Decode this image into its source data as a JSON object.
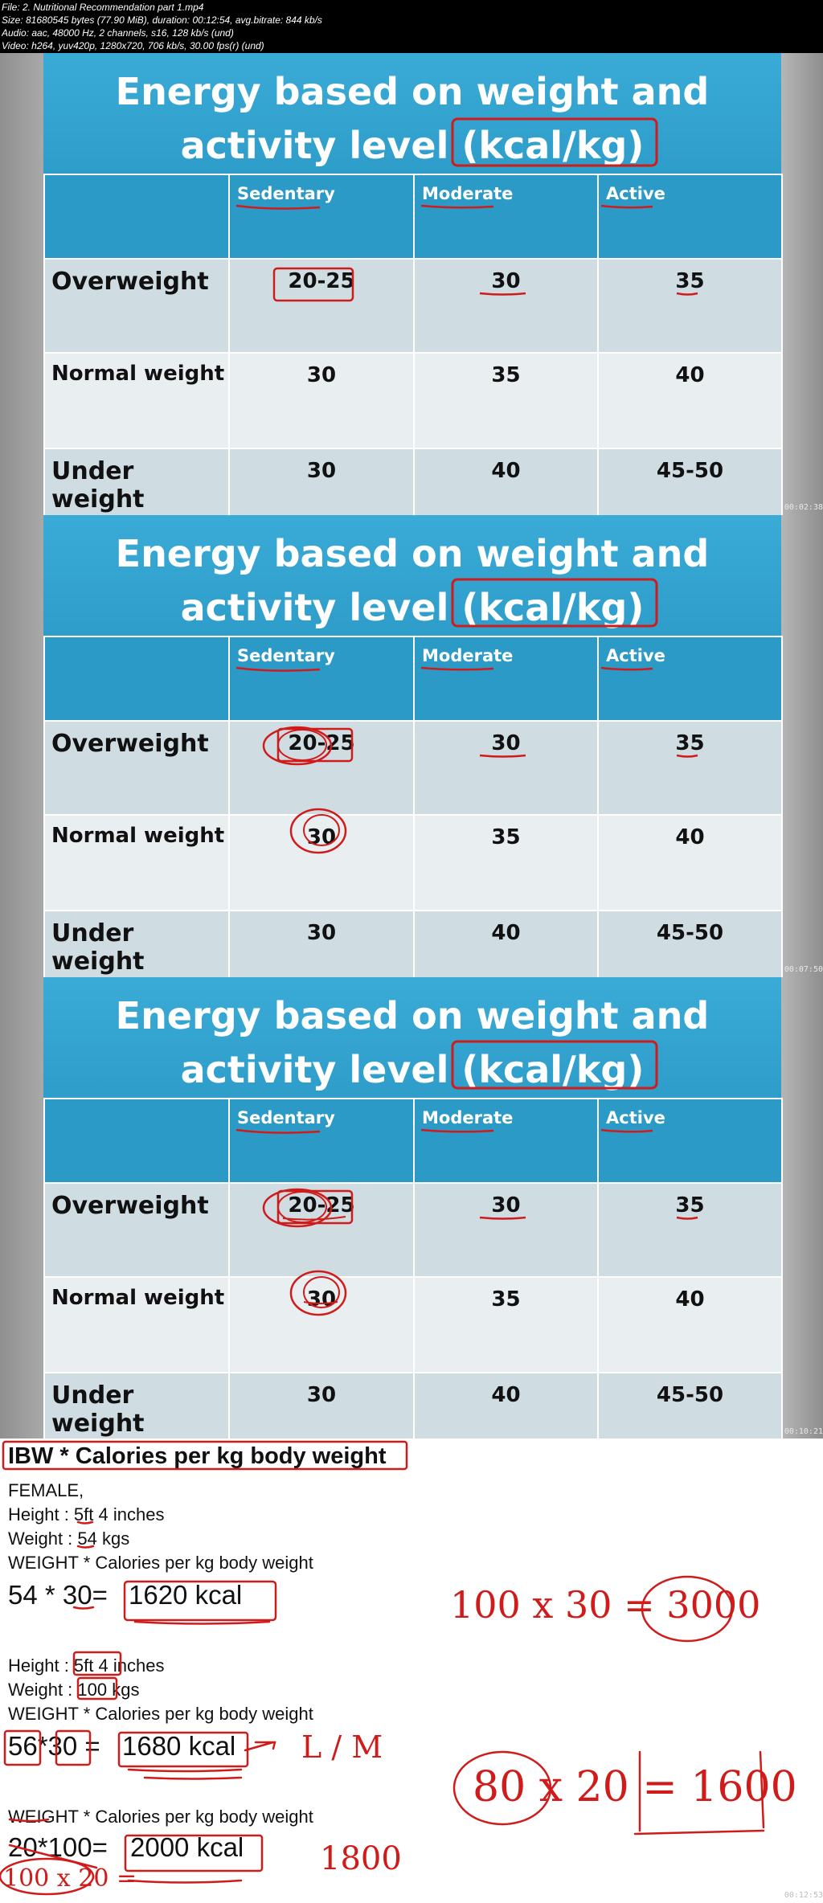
{
  "file_info": [
    "File: 2. Nutritional Recommendation part 1.mp4",
    "Size: 81680545 bytes (77.90 MiB), duration: 00:12:54, avg.bitrate: 844 kb/s",
    "Audio: aac, 48000 Hz, 2 channels, s16, 128 kb/s (und)",
    "Video: h264, yuv420p, 1280x720, 706 kb/s, 30.00 fps(r) (und)"
  ],
  "slide": {
    "title_line1": "Energy based on weight and",
    "title_line2": "activity level (kcal/kg)",
    "columns": [
      "Sedentary",
      "Moderate",
      "Active"
    ],
    "rows": [
      {
        "label": "Overweight",
        "values": [
          "20-25",
          "30",
          "35"
        ]
      },
      {
        "label": "Normal weight",
        "values": [
          "30",
          "35",
          "40"
        ]
      },
      {
        "label": "Under weight",
        "values": [
          "30",
          "40",
          "45-50"
        ]
      }
    ]
  },
  "timestamps": [
    "00:02:38",
    "00:07:50",
    "00:10:21",
    "00:12:53"
  ],
  "whiteboard": {
    "heading": "IBW * Calories per kg body weight",
    "female": "FEMALE,",
    "height1": "Height : 5ft 4 inches",
    "weight1": "Weight : 54 kgs",
    "formula1": "WEIGHT * Calories per kg body weight",
    "calc1_left": "54 * 30=",
    "calc1_result": "1620 kcal",
    "hand_calc1": "100 x 30 = 3000",
    "height2": "Height : 5ft 4 inches",
    "weight2": "Weight : 100 kgs",
    "formula2": "WEIGHT * Calories per kg body weight",
    "calc2_left": "56*30 =",
    "calc2_result": "1680 kcal",
    "hand_lm": "L / M",
    "hand_calc2": "80 x 20 = 1600",
    "formula3": "WEIGHT * Calories per kg body weight",
    "calc3_left": "20*100=",
    "calc3_result": "2000 kcal",
    "hand_1800": "1800",
    "hand_calc3": "100 x 20 ="
  },
  "colors": {
    "slide_blue": "#2e9dc9",
    "ink_red": "#d01b1b"
  }
}
